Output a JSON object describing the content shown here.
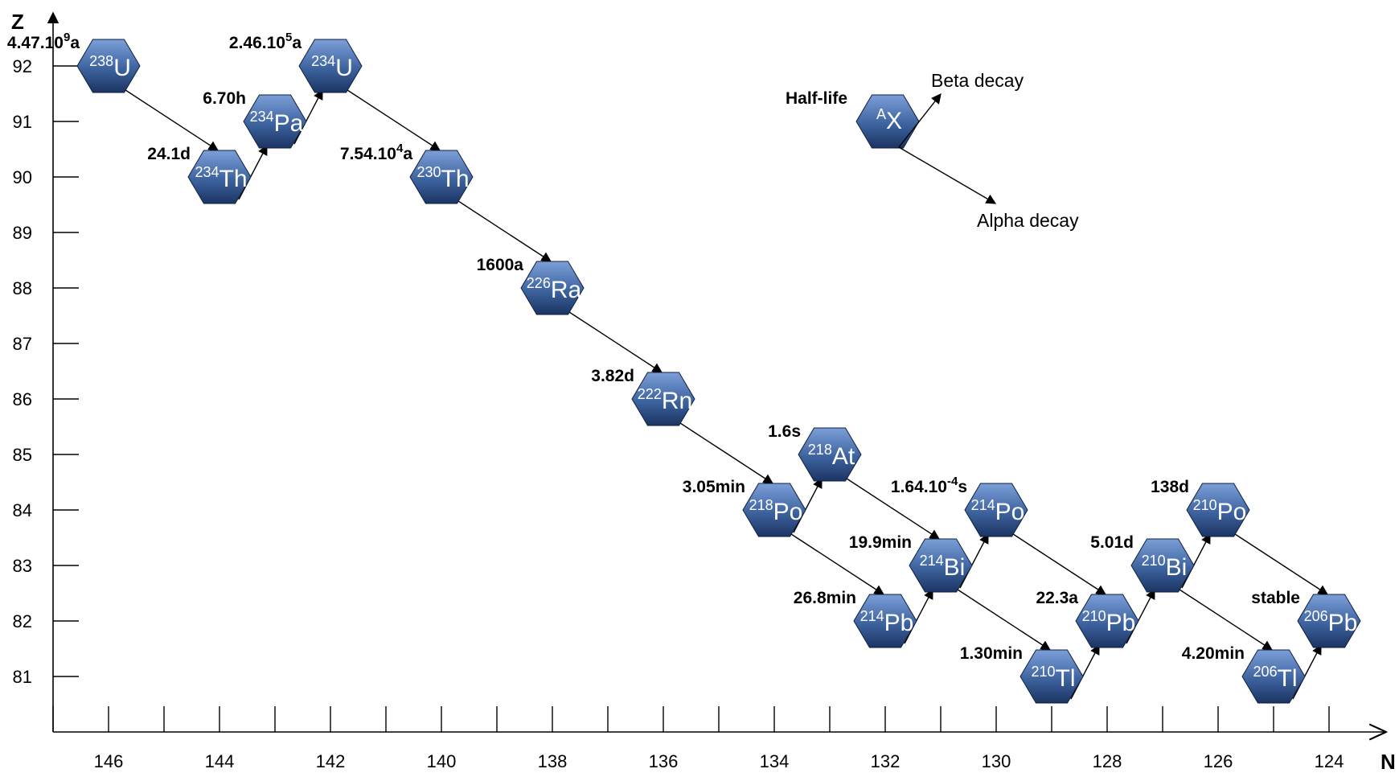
{
  "chart_data": {
    "type": "diagram",
    "title": "",
    "x_axis": {
      "label": "N",
      "ticks": [
        146,
        144,
        142,
        140,
        138,
        136,
        134,
        132,
        130,
        128,
        126,
        124
      ]
    },
    "y_axis": {
      "label": "Z",
      "ticks": [
        92,
        91,
        90,
        89,
        88,
        87,
        86,
        85,
        84,
        83,
        82,
        81
      ]
    },
    "nuclides": [
      {
        "id": "U238",
        "mass": "238",
        "symbol": "U",
        "N": 146,
        "Z": 92,
        "half_life": "4.47.10",
        "exp": "9",
        "unit": "a"
      },
      {
        "id": "Th234",
        "mass": "234",
        "symbol": "Th",
        "N": 144,
        "Z": 90,
        "half_life": "24.1d",
        "exp": "",
        "unit": ""
      },
      {
        "id": "Pa234",
        "mass": "234",
        "symbol": "Pa",
        "N": 143,
        "Z": 91,
        "half_life": "6.70h",
        "exp": "",
        "unit": ""
      },
      {
        "id": "U234",
        "mass": "234",
        "symbol": "U",
        "N": 142,
        "Z": 92,
        "half_life": "2.46.10",
        "exp": "5",
        "unit": "a"
      },
      {
        "id": "Th230",
        "mass": "230",
        "symbol": "Th",
        "N": 140,
        "Z": 90,
        "half_life": "7.54.10",
        "exp": "4",
        "unit": "a"
      },
      {
        "id": "Ra226",
        "mass": "226",
        "symbol": "Ra",
        "N": 138,
        "Z": 88,
        "half_life": "1600a",
        "exp": "",
        "unit": ""
      },
      {
        "id": "Rn222",
        "mass": "222",
        "symbol": "Rn",
        "N": 136,
        "Z": 86,
        "half_life": "3.82d",
        "exp": "",
        "unit": ""
      },
      {
        "id": "Po218",
        "mass": "218",
        "symbol": "Po",
        "N": 134,
        "Z": 84,
        "half_life": "3.05min",
        "exp": "",
        "unit": ""
      },
      {
        "id": "At218",
        "mass": "218",
        "symbol": "At",
        "N": 133,
        "Z": 85,
        "half_life": "1.6s",
        "exp": "",
        "unit": ""
      },
      {
        "id": "Pb214",
        "mass": "214",
        "symbol": "Pb",
        "N": 132,
        "Z": 82,
        "half_life": "26.8min",
        "exp": "",
        "unit": ""
      },
      {
        "id": "Bi214",
        "mass": "214",
        "symbol": "Bi",
        "N": 131,
        "Z": 83,
        "half_life": "19.9min",
        "exp": "",
        "unit": ""
      },
      {
        "id": "Po214",
        "mass": "214",
        "symbol": "Po",
        "N": 130,
        "Z": 84,
        "half_life": "1.64.10",
        "exp": "-4",
        "unit": "s"
      },
      {
        "id": "Tl210",
        "mass": "210",
        "symbol": "Tl",
        "N": 129,
        "Z": 81,
        "half_life": "1.30min",
        "exp": "",
        "unit": ""
      },
      {
        "id": "Pb210",
        "mass": "210",
        "symbol": "Pb",
        "N": 128,
        "Z": 82,
        "half_life": "22.3a",
        "exp": "",
        "unit": ""
      },
      {
        "id": "Bi210",
        "mass": "210",
        "symbol": "Bi",
        "N": 127,
        "Z": 83,
        "half_life": "5.01d",
        "exp": "",
        "unit": ""
      },
      {
        "id": "Po210",
        "mass": "210",
        "symbol": "Po",
        "N": 126,
        "Z": 84,
        "half_life": "138d",
        "exp": "",
        "unit": ""
      },
      {
        "id": "Tl206",
        "mass": "206",
        "symbol": "Tl",
        "N": 125,
        "Z": 81,
        "half_life": "4.20min",
        "exp": "",
        "unit": ""
      },
      {
        "id": "Pb206",
        "mass": "206",
        "symbol": "Pb",
        "N": 124,
        "Z": 82,
        "half_life": "stable",
        "exp": "",
        "unit": ""
      }
    ],
    "decays": [
      {
        "from": "U238",
        "to": "Th234",
        "type": "alpha"
      },
      {
        "from": "Th234",
        "to": "Pa234",
        "type": "beta"
      },
      {
        "from": "Pa234",
        "to": "U234",
        "type": "beta"
      },
      {
        "from": "U234",
        "to": "Th230",
        "type": "alpha"
      },
      {
        "from": "Th230",
        "to": "Ra226",
        "type": "alpha"
      },
      {
        "from": "Ra226",
        "to": "Rn222",
        "type": "alpha"
      },
      {
        "from": "Rn222",
        "to": "Po218",
        "type": "alpha"
      },
      {
        "from": "Po218",
        "to": "At218",
        "type": "beta"
      },
      {
        "from": "Po218",
        "to": "Pb214",
        "type": "alpha"
      },
      {
        "from": "At218",
        "to": "Bi214",
        "type": "alpha"
      },
      {
        "from": "Pb214",
        "to": "Bi214",
        "type": "beta"
      },
      {
        "from": "Bi214",
        "to": "Po214",
        "type": "beta"
      },
      {
        "from": "Bi214",
        "to": "Tl210",
        "type": "alpha"
      },
      {
        "from": "Po214",
        "to": "Pb210",
        "type": "alpha"
      },
      {
        "from": "Tl210",
        "to": "Pb210",
        "type": "beta"
      },
      {
        "from": "Pb210",
        "to": "Bi210",
        "type": "beta"
      },
      {
        "from": "Bi210",
        "to": "Po210",
        "type": "beta"
      },
      {
        "from": "Bi210",
        "to": "Tl206",
        "type": "alpha"
      },
      {
        "from": "Po210",
        "to": "Pb206",
        "type": "alpha"
      },
      {
        "from": "Tl206",
        "to": "Pb206",
        "type": "beta"
      }
    ],
    "legend": {
      "half_life_label": "Half-life",
      "symbol_mass": "A",
      "symbol": "X",
      "beta_label": "Beta decay",
      "alpha_label": "Alpha decay"
    },
    "colors": {
      "hex_top": "#7c9fd8",
      "hex_mid": "#3d639f",
      "hex_bottom": "#1b3462",
      "hex_stroke": "#0f2040",
      "line": "#000000"
    }
  }
}
